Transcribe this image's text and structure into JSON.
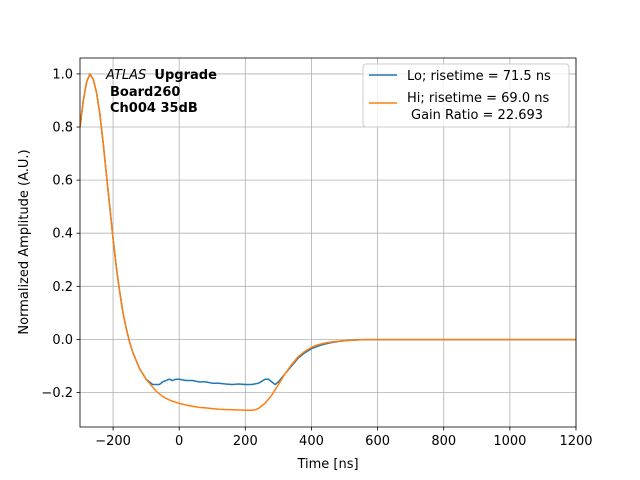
{
  "chart_data": {
    "type": "line",
    "xlabel": "Time [ns]",
    "ylabel": "Normalized Amplitude (A.U.)",
    "xlim": [
      -300,
      1200
    ],
    "ylim": [
      -0.33,
      1.06
    ],
    "xticks": [
      -200,
      0,
      200,
      400,
      600,
      800,
      1000,
      1200
    ],
    "yticks": [
      -0.2,
      0.0,
      0.2,
      0.4,
      0.6,
      0.8,
      1.0
    ],
    "xtick_labels": [
      "−200",
      "0",
      "200",
      "400",
      "600",
      "800",
      "1000",
      "1200"
    ],
    "ytick_labels": [
      "−0.2",
      "0.0",
      "0.2",
      "0.4",
      "0.6",
      "0.8",
      "1.0"
    ],
    "grid": true,
    "legend_position": "top-right",
    "annotation": {
      "italic": "ATLAS",
      "bold_1": "Upgrade",
      "line_2": "Board260",
      "line_3": "Ch004 35dB"
    },
    "series": [
      {
        "name": "Lo; risetime = 71.5 ns",
        "color": "#1f77b4",
        "x": [
          -300,
          -290,
          -280,
          -270,
          -260,
          -250,
          -240,
          -230,
          -220,
          -210,
          -200,
          -190,
          -180,
          -170,
          -160,
          -150,
          -140,
          -130,
          -120,
          -110,
          -100,
          -90,
          -80,
          -70,
          -60,
          -50,
          -40,
          -30,
          -20,
          -10,
          0,
          20,
          40,
          60,
          80,
          100,
          120,
          140,
          160,
          180,
          200,
          220,
          240,
          260,
          270,
          280,
          290,
          300,
          320,
          340,
          360,
          380,
          400,
          420,
          440,
          460,
          480,
          500,
          520,
          540,
          560,
          580,
          600,
          650,
          700,
          750,
          800,
          850,
          900,
          950,
          1000,
          1050,
          1100,
          1150,
          1200
        ],
        "y": [
          0.8,
          0.9,
          0.97,
          1.0,
          0.98,
          0.93,
          0.85,
          0.74,
          0.62,
          0.5,
          0.38,
          0.27,
          0.18,
          0.1,
          0.04,
          -0.01,
          -0.05,
          -0.08,
          -0.11,
          -0.13,
          -0.15,
          -0.16,
          -0.17,
          -0.17,
          -0.17,
          -0.16,
          -0.155,
          -0.15,
          -0.155,
          -0.15,
          -0.15,
          -0.155,
          -0.155,
          -0.16,
          -0.16,
          -0.165,
          -0.165,
          -0.168,
          -0.17,
          -0.168,
          -0.17,
          -0.17,
          -0.165,
          -0.15,
          -0.15,
          -0.16,
          -0.17,
          -0.16,
          -0.13,
          -0.1,
          -0.07,
          -0.05,
          -0.035,
          -0.025,
          -0.018,
          -0.012,
          -0.008,
          -0.005,
          -0.003,
          -0.002,
          -0.001,
          -0.001,
          -0.001,
          -0.001,
          -0.001,
          -0.001,
          -0.001,
          -0.001,
          -0.001,
          -0.001,
          -0.001,
          -0.001,
          -0.001,
          -0.001,
          -0.001
        ]
      },
      {
        "name": "Hi; risetime = 69.0 ns",
        "name_line_2": "Gain Ratio = 22.693",
        "color": "#ff7f0e",
        "x": [
          -300,
          -290,
          -280,
          -270,
          -260,
          -250,
          -240,
          -230,
          -220,
          -210,
          -200,
          -190,
          -180,
          -170,
          -160,
          -150,
          -140,
          -130,
          -120,
          -110,
          -100,
          -90,
          -80,
          -70,
          -60,
          -50,
          -40,
          -30,
          -20,
          -10,
          0,
          20,
          40,
          60,
          80,
          100,
          120,
          140,
          160,
          180,
          200,
          210,
          220,
          230,
          240,
          250,
          260,
          270,
          280,
          290,
          300,
          320,
          340,
          360,
          380,
          400,
          420,
          440,
          460,
          480,
          500,
          520,
          540,
          560,
          580,
          600,
          650,
          700,
          750,
          800,
          850,
          900,
          950,
          1000,
          1050,
          1100,
          1150,
          1200
        ],
        "y": [
          0.8,
          0.9,
          0.97,
          1.0,
          0.98,
          0.93,
          0.85,
          0.74,
          0.62,
          0.5,
          0.38,
          0.27,
          0.18,
          0.1,
          0.04,
          -0.01,
          -0.05,
          -0.08,
          -0.11,
          -0.13,
          -0.15,
          -0.165,
          -0.18,
          -0.195,
          -0.205,
          -0.215,
          -0.222,
          -0.228,
          -0.233,
          -0.237,
          -0.241,
          -0.247,
          -0.252,
          -0.256,
          -0.258,
          -0.261,
          -0.263,
          -0.264,
          -0.265,
          -0.266,
          -0.267,
          -0.267,
          -0.267,
          -0.265,
          -0.26,
          -0.25,
          -0.24,
          -0.225,
          -0.21,
          -0.19,
          -0.17,
          -0.13,
          -0.095,
          -0.065,
          -0.045,
          -0.03,
          -0.02,
          -0.014,
          -0.01,
          -0.007,
          -0.005,
          -0.003,
          -0.002,
          -0.001,
          -0.001,
          -0.001,
          -0.001,
          -0.001,
          -0.001,
          -0.001,
          -0.001,
          -0.001,
          -0.001,
          -0.001,
          -0.001,
          -0.001,
          -0.001,
          -0.001
        ]
      }
    ]
  }
}
